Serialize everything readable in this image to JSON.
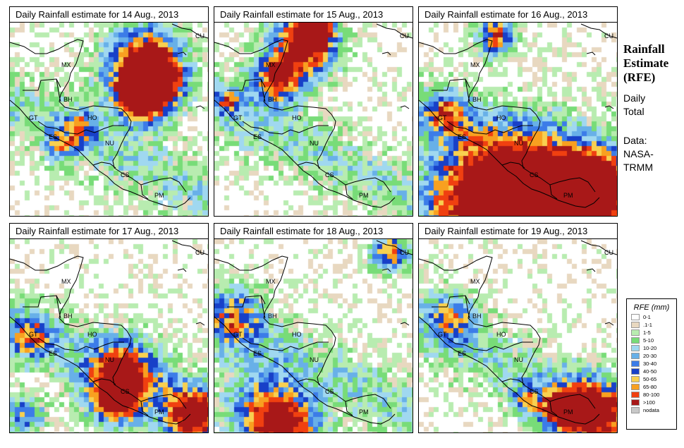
{
  "panels": [
    {
      "title": "Daily Rainfall estimate for  14 Aug., 2013",
      "seed": 14,
      "hot": "caribbean_north"
    },
    {
      "title": "Daily Rainfall estimate for  15 Aug., 2013",
      "seed": 15,
      "hot": "yucatan_east"
    },
    {
      "title": "Daily Rainfall estimate for  16 Aug., 2013",
      "seed": 16,
      "hot": "south_band"
    },
    {
      "title": "Daily Rainfall estimate for  17 Aug., 2013",
      "seed": 17,
      "hot": "nicaragua_panama"
    },
    {
      "title": "Daily Rainfall estimate for  18 Aug., 2013",
      "seed": 18,
      "hot": "pacific_south"
    },
    {
      "title": "Daily Rainfall estimate for  19 Aug., 2013",
      "seed": 19,
      "hot": "panama_south"
    }
  ],
  "country_labels": [
    {
      "code": "CU"
    },
    {
      "code": "MX"
    },
    {
      "code": "BH"
    },
    {
      "code": "GT"
    },
    {
      "code": "HO"
    },
    {
      "code": "ES"
    },
    {
      "code": "NU"
    },
    {
      "code": "CS"
    },
    {
      "code": "PM"
    }
  ],
  "sidebar": {
    "title_line1": "Rainfall",
    "title_line2": "Estimate",
    "title_line3": "(RFE)",
    "period_line1": "Daily",
    "period_line2": "Total",
    "source_line1": "Data:",
    "source_line2": "NASA-",
    "source_line3": "TRMM"
  },
  "legend": {
    "title": "RFE (mm)",
    "entries": [
      {
        "label": "0-1",
        "color": "#ffffff"
      },
      {
        "label": ".1-1",
        "color": "#e8d8c0"
      },
      {
        "label": "1-5",
        "color": "#b8ecb0"
      },
      {
        "label": "5-10",
        "color": "#78dc78"
      },
      {
        "label": "10-20",
        "color": "#a0d8f0"
      },
      {
        "label": "20-30",
        "color": "#68b0e8"
      },
      {
        "label": "30-40",
        "color": "#3c7ce8"
      },
      {
        "label": "40-50",
        "color": "#1840c8"
      },
      {
        "label": "50-65",
        "color": "#f8d050"
      },
      {
        "label": "65-80",
        "color": "#f8a020"
      },
      {
        "label": "80-100",
        "color": "#f04010"
      },
      {
        "label": ">100",
        "color": "#a81818"
      },
      {
        "label": "nodata",
        "color": "#c8c8c8"
      }
    ]
  }
}
